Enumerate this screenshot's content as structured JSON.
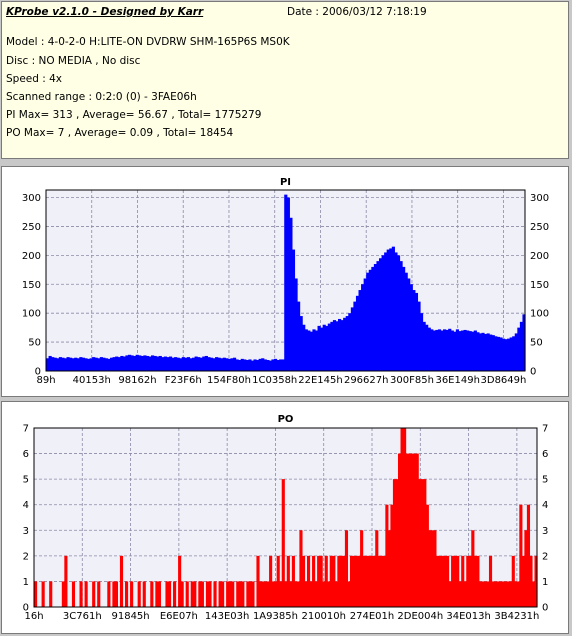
{
  "info": {
    "title": "KProbe v2.1.0 - Designed by Karr",
    "date": "Date : 2006/03/12 7:18:19",
    "lines": [
      "Model : 4-0-2-0 H:LITE-ON DVDRW SHM-165P6S MS0K",
      "Disc : NO MEDIA , No disc",
      "Speed : 4x",
      "Scanned range : 0:2:0 (0) - 3FAE06h",
      "PI Max= 313 , Average= 56.67 , Total= 1775279",
      "PO Max= 7 , Average= 0.09 , Total= 18454"
    ]
  },
  "colors": {
    "pi": "#0000ff",
    "po": "#ff0000",
    "grid": "#8a8aa6",
    "plot_bg": "#f0f0f8"
  },
  "chart_data": [
    {
      "type": "area",
      "title": "PI",
      "ylim": [
        0,
        313
      ],
      "yticks": [
        0,
        50,
        100,
        150,
        200,
        250,
        300
      ],
      "xticks": [
        "89h",
        "40153h",
        "98162h",
        "F23F6h",
        "154F80h",
        "1C0358h",
        "22E145h",
        "296627h",
        "300F85h",
        "36E149h",
        "3D8649h"
      ],
      "grid": true,
      "series": [
        {
          "values": [
            22,
            26,
            24,
            23,
            22,
            24,
            23,
            22,
            24,
            23,
            22,
            23,
            22,
            24,
            23,
            22,
            21,
            22,
            24,
            23,
            22,
            24,
            23,
            22,
            21,
            23,
            24,
            25,
            24,
            26,
            25,
            27,
            28,
            27,
            26,
            28,
            27,
            26,
            27,
            26,
            25,
            27,
            26,
            25,
            26,
            24,
            25,
            24,
            25,
            23,
            24,
            23,
            22,
            24,
            23,
            24,
            22,
            23,
            25,
            24,
            23,
            25,
            26,
            24,
            23,
            22,
            24,
            23,
            22,
            23,
            22,
            21,
            22,
            23,
            20,
            19,
            21,
            20,
            19,
            20,
            18,
            20,
            19,
            21,
            22,
            20,
            19,
            18,
            20,
            21,
            19,
            20,
            20,
            305,
            300,
            265,
            210,
            160,
            120,
            95,
            80,
            72,
            70,
            68,
            72,
            70,
            78,
            75,
            80,
            78,
            82,
            85,
            88,
            86,
            90,
            88,
            92,
            95,
            100,
            110,
            120,
            130,
            140,
            150,
            160,
            170,
            175,
            180,
            185,
            190,
            195,
            200,
            205,
            210,
            212,
            215,
            205,
            200,
            190,
            180,
            170,
            160,
            150,
            140,
            135,
            120,
            100,
            85,
            80,
            75,
            72,
            70,
            71,
            72,
            70,
            72,
            71,
            73,
            70,
            68,
            72,
            69,
            70,
            71,
            70,
            69,
            68,
            70,
            67,
            65,
            66,
            64,
            65,
            63,
            62,
            60,
            59,
            58,
            56,
            55,
            56,
            58,
            60,
            65,
            75,
            85,
            98
          ]
        }
      ]
    },
    {
      "type": "bar",
      "title": "PO",
      "ylim": [
        0,
        7
      ],
      "yticks": [
        0,
        1,
        2,
        3,
        4,
        5,
        6,
        7
      ],
      "xticks": [
        "16h",
        "3C761h",
        "91845h",
        "E6E07h",
        "143E03h",
        "1A9385h",
        "210010h",
        "274E01h",
        "2DE004h",
        "34E013h",
        "3B4231h"
      ],
      "grid": true,
      "series": [
        {
          "values": [
            1,
            0,
            0,
            1,
            0,
            0,
            1,
            0,
            0,
            0,
            0,
            1,
            2,
            0,
            0,
            1,
            0,
            0,
            1,
            0,
            1,
            0,
            0,
            1,
            0,
            1,
            0,
            0,
            0,
            1,
            0,
            1,
            1,
            0,
            2,
            0,
            1,
            0,
            1,
            0,
            0,
            1,
            0,
            1,
            0,
            0,
            1,
            0,
            1,
            1,
            0,
            0,
            1,
            1,
            0,
            1,
            0,
            2,
            1,
            0,
            1,
            0,
            1,
            1,
            0,
            1,
            1,
            0,
            1,
            1,
            0,
            1,
            0,
            1,
            1,
            0,
            1,
            1,
            1,
            0,
            1,
            1,
            1,
            0,
            1,
            1,
            1,
            0,
            2,
            1,
            1,
            1,
            1,
            2,
            1,
            1,
            2,
            1,
            5,
            1,
            2,
            1,
            2,
            1,
            1,
            3,
            2,
            1,
            2,
            1,
            2,
            1,
            2,
            2,
            1,
            2,
            1,
            2,
            2,
            1,
            2,
            2,
            2,
            3,
            1,
            2,
            2,
            2,
            2,
            3,
            2,
            2,
            2,
            2,
            2,
            3,
            2,
            2,
            2,
            4,
            3,
            4,
            5,
            5,
            6,
            7,
            7,
            6,
            6,
            6,
            6,
            6,
            5,
            5,
            5,
            4,
            3,
            3,
            3,
            2,
            2,
            2,
            2,
            2,
            1,
            2,
            2,
            2,
            1,
            2,
            1,
            2,
            2,
            3,
            2,
            2,
            1,
            1,
            1,
            1,
            2,
            1,
            1,
            1,
            1,
            1,
            1,
            1,
            1,
            2,
            1,
            1,
            4,
            2,
            3,
            4,
            2,
            1,
            2
          ]
        }
      ]
    }
  ]
}
